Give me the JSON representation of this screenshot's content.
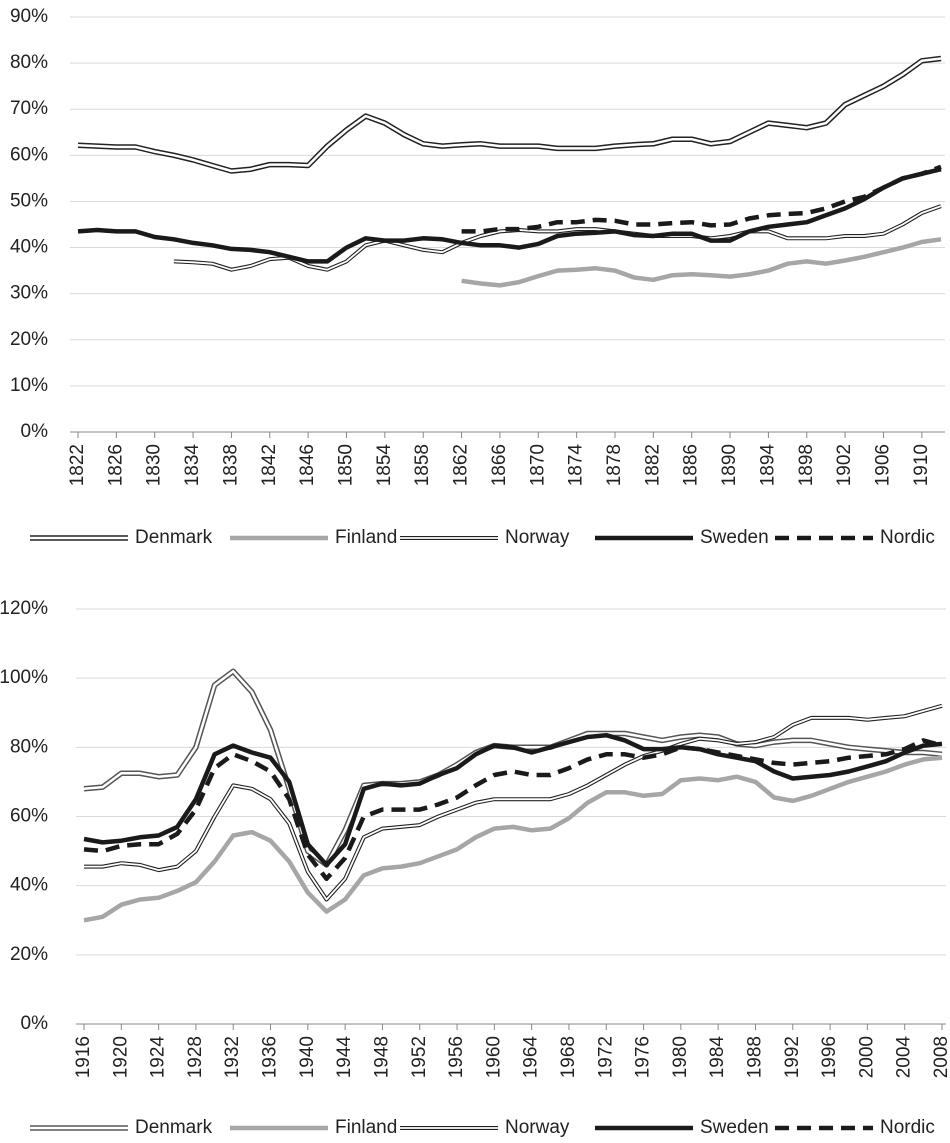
{
  "chart_data": [
    {
      "type": "line",
      "x": [
        1822,
        1824,
        1826,
        1828,
        1830,
        1832,
        1834,
        1836,
        1838,
        1840,
        1842,
        1844,
        1846,
        1848,
        1850,
        1852,
        1854,
        1856,
        1858,
        1860,
        1862,
        1864,
        1866,
        1868,
        1870,
        1872,
        1874,
        1876,
        1878,
        1880,
        1882,
        1884,
        1886,
        1888,
        1890,
        1892,
        1894,
        1896,
        1898,
        1900,
        1902,
        1904,
        1906,
        1908,
        1910,
        1912
      ],
      "xlim": [
        1822,
        1912
      ],
      "xticks": [
        1822,
        1826,
        1830,
        1834,
        1838,
        1842,
        1846,
        1850,
        1854,
        1858,
        1862,
        1866,
        1870,
        1874,
        1878,
        1882,
        1886,
        1890,
        1894,
        1898,
        1902,
        1906,
        1910
      ],
      "ylim": [
        0,
        90
      ],
      "yticks": [
        {
          "value": 0,
          "label": "0%"
        },
        {
          "value": 10,
          "label": "10%"
        },
        {
          "value": 20,
          "label": "20%"
        },
        {
          "value": 30,
          "label": "30%"
        },
        {
          "value": 40,
          "label": "40%"
        },
        {
          "value": 50,
          "label": "50%"
        },
        {
          "value": 60,
          "label": "60%"
        },
        {
          "value": 70,
          "label": "70%"
        },
        {
          "value": 80,
          "label": "80%"
        },
        {
          "value": 90,
          "label": "90%"
        }
      ],
      "grid": true,
      "legend": "bottom",
      "series": [
        {
          "name": "Denmark",
          "color": "#222222",
          "style": "double",
          "values": [
            62.2,
            62,
            61.8,
            61.8,
            60.8,
            60,
            59,
            57.8,
            56.6,
            57,
            58,
            58,
            57.8,
            62,
            65.5,
            68.5,
            67,
            64.5,
            62.5,
            62,
            62.3,
            62.5,
            62,
            62,
            62,
            61.5,
            61.5,
            61.5,
            62,
            62.3,
            62.5,
            63.5,
            63.5,
            62.5,
            63,
            65,
            67,
            66.5,
            66,
            67,
            71,
            73,
            75,
            77.5,
            80.5,
            81
          ]
        },
        {
          "name": "Finland",
          "color": "#a6a6a6",
          "style": "solid",
          "values": [
            null,
            null,
            null,
            null,
            null,
            null,
            null,
            null,
            null,
            null,
            null,
            null,
            null,
            null,
            null,
            null,
            null,
            null,
            null,
            null,
            32.8,
            32.2,
            31.8,
            32.5,
            33.8,
            35,
            35.2,
            35.5,
            35,
            33.5,
            33,
            34,
            34.2,
            34,
            33.7,
            34.2,
            35,
            36.5,
            37,
            36.5,
            37.2,
            38,
            39,
            40,
            41.2,
            41.8
          ]
        },
        {
          "name": "Norway",
          "color": "#222222",
          "style": "double-thin",
          "values": [
            null,
            null,
            null,
            null,
            null,
            37,
            36.8,
            36.5,
            35.2,
            36,
            37.5,
            37.8,
            36,
            35.2,
            37,
            40.5,
            41.5,
            40.5,
            39.5,
            39,
            41,
            42.5,
            43.5,
            43.8,
            43.5,
            43.5,
            44,
            44,
            43.5,
            43,
            42.5,
            42.5,
            42.5,
            42,
            42.5,
            43.5,
            43.5,
            42,
            42,
            42,
            42.5,
            42.5,
            43,
            45,
            47.5,
            49
          ]
        },
        {
          "name": "Sweden",
          "color": "#1a1a1a",
          "style": "solid",
          "values": [
            43.5,
            43.8,
            43.5,
            43.5,
            42.3,
            41.8,
            41,
            40.5,
            39.7,
            39.5,
            39,
            38,
            37,
            37,
            40,
            42,
            41.5,
            41.5,
            42,
            41.8,
            41,
            40.5,
            40.5,
            40,
            40.8,
            42.5,
            43,
            43.2,
            43.5,
            42.7,
            42.5,
            43,
            43,
            41.5,
            41.5,
            43.5,
            44.5,
            45,
            45.5,
            47,
            48.5,
            50.5,
            53,
            55,
            56,
            57
          ]
        },
        {
          "name": "Nordic",
          "color": "#1a1a1a",
          "style": "dashed",
          "values": [
            null,
            null,
            null,
            null,
            null,
            null,
            null,
            null,
            null,
            null,
            null,
            null,
            null,
            null,
            null,
            null,
            null,
            null,
            null,
            null,
            43.5,
            43.5,
            44,
            44,
            44.5,
            45.5,
            45.5,
            46,
            45.8,
            45,
            45,
            45.3,
            45.5,
            44.8,
            45,
            46.3,
            47,
            47.3,
            47.5,
            48.5,
            50,
            51,
            53,
            55,
            56,
            57.5
          ]
        }
      ]
    },
    {
      "type": "line",
      "x": [
        1916,
        1918,
        1920,
        1922,
        1924,
        1926,
        1928,
        1930,
        1932,
        1934,
        1936,
        1938,
        1940,
        1942,
        1944,
        1946,
        1948,
        1950,
        1952,
        1954,
        1956,
        1958,
        1960,
        1962,
        1964,
        1966,
        1968,
        1970,
        1972,
        1974,
        1976,
        1978,
        1980,
        1982,
        1984,
        1986,
        1988,
        1990,
        1992,
        1994,
        1996,
        1998,
        2000,
        2002,
        2004,
        2006,
        2008
      ],
      "xlim": [
        1916,
        2008
      ],
      "xticks": [
        1916,
        1920,
        1924,
        1928,
        1932,
        1936,
        1940,
        1944,
        1948,
        1952,
        1956,
        1960,
        1964,
        1968,
        1972,
        1976,
        1980,
        1984,
        1988,
        1992,
        1996,
        2000,
        2004,
        2008
      ],
      "ylim": [
        0,
        120
      ],
      "yticks": [
        {
          "value": 0,
          "label": "0%"
        },
        {
          "value": 20,
          "label": "20%"
        },
        {
          "value": 40,
          "label": "40%"
        },
        {
          "value": 60,
          "label": "60%"
        },
        {
          "value": 80,
          "label": "80%"
        },
        {
          "value": 100,
          "label": "100%"
        },
        {
          "value": 120,
          "label": "120%"
        }
      ],
      "grid": true,
      "legend": "bottom",
      "series": [
        {
          "name": "Denmark",
          "color": "#555555",
          "style": "double",
          "values": [
            68,
            68.5,
            72.5,
            72.5,
            71.5,
            72,
            80,
            98,
            102,
            96,
            85,
            68,
            50,
            46,
            56,
            69,
            69.5,
            69.5,
            70,
            72,
            75,
            78.5,
            80.5,
            80,
            80,
            80,
            82,
            84,
            84,
            84,
            83,
            82,
            83,
            83.5,
            83,
            81,
            80.5,
            81.5,
            82,
            82,
            81,
            80,
            79.5,
            79,
            78.5,
            78.5,
            78
          ]
        },
        {
          "name": "Finland",
          "color": "#a6a6a6",
          "style": "solid",
          "values": [
            30,
            31,
            34.5,
            36,
            36.5,
            38.5,
            41,
            47,
            54.5,
            55.5,
            53,
            47,
            38,
            32.5,
            36,
            43,
            45,
            45.5,
            46.5,
            48.5,
            50.5,
            54,
            56.5,
            57,
            56,
            56.5,
            59.5,
            64,
            67,
            67,
            66,
            66.5,
            70.5,
            71,
            70.5,
            71.5,
            70,
            65.5,
            64.5,
            66,
            68,
            70,
            71.5,
            73,
            75,
            76.5,
            77
          ]
        },
        {
          "name": "Norway",
          "color": "#222222",
          "style": "double-thin",
          "values": [
            45.5,
            45.5,
            46.5,
            46,
            44.5,
            45.5,
            50,
            60,
            69,
            68,
            65,
            58,
            44,
            36,
            42,
            54,
            56.5,
            57,
            57.5,
            60,
            62,
            64,
            65,
            65,
            65,
            65,
            66.5,
            69,
            72,
            75,
            77.5,
            79,
            81,
            82.5,
            82,
            81,
            81.5,
            83,
            86.5,
            88.5,
            88.5,
            88.5,
            88,
            88.5,
            89,
            90.5,
            92
          ]
        },
        {
          "name": "Sweden",
          "color": "#1a1a1a",
          "style": "solid",
          "values": [
            53.5,
            52.5,
            53,
            54,
            54.5,
            57,
            65,
            78,
            80.5,
            78.5,
            77,
            70,
            52,
            46,
            52,
            68,
            69.5,
            69,
            69.5,
            72,
            74,
            78,
            80.5,
            80,
            78.5,
            80,
            81.5,
            83,
            83.5,
            82,
            79.5,
            79.5,
            80,
            79.5,
            78,
            77,
            76,
            73,
            71,
            71.5,
            72,
            73,
            74.5,
            76,
            78.5,
            80.5,
            81
          ]
        },
        {
          "name": "Nordic",
          "color": "#1a1a1a",
          "style": "dashed",
          "values": [
            50.5,
            50,
            51.5,
            52,
            52,
            55,
            62,
            74,
            78,
            76,
            73,
            65,
            49,
            42,
            48,
            60,
            62,
            62,
            62,
            63.5,
            65.5,
            69,
            72,
            73,
            72,
            72,
            74,
            76.5,
            78,
            78,
            77,
            78,
            80,
            79.5,
            78.5,
            77.5,
            76.5,
            75.5,
            75,
            75.5,
            76,
            77,
            77.5,
            78,
            79.5,
            82,
            80.5
          ]
        }
      ]
    }
  ]
}
